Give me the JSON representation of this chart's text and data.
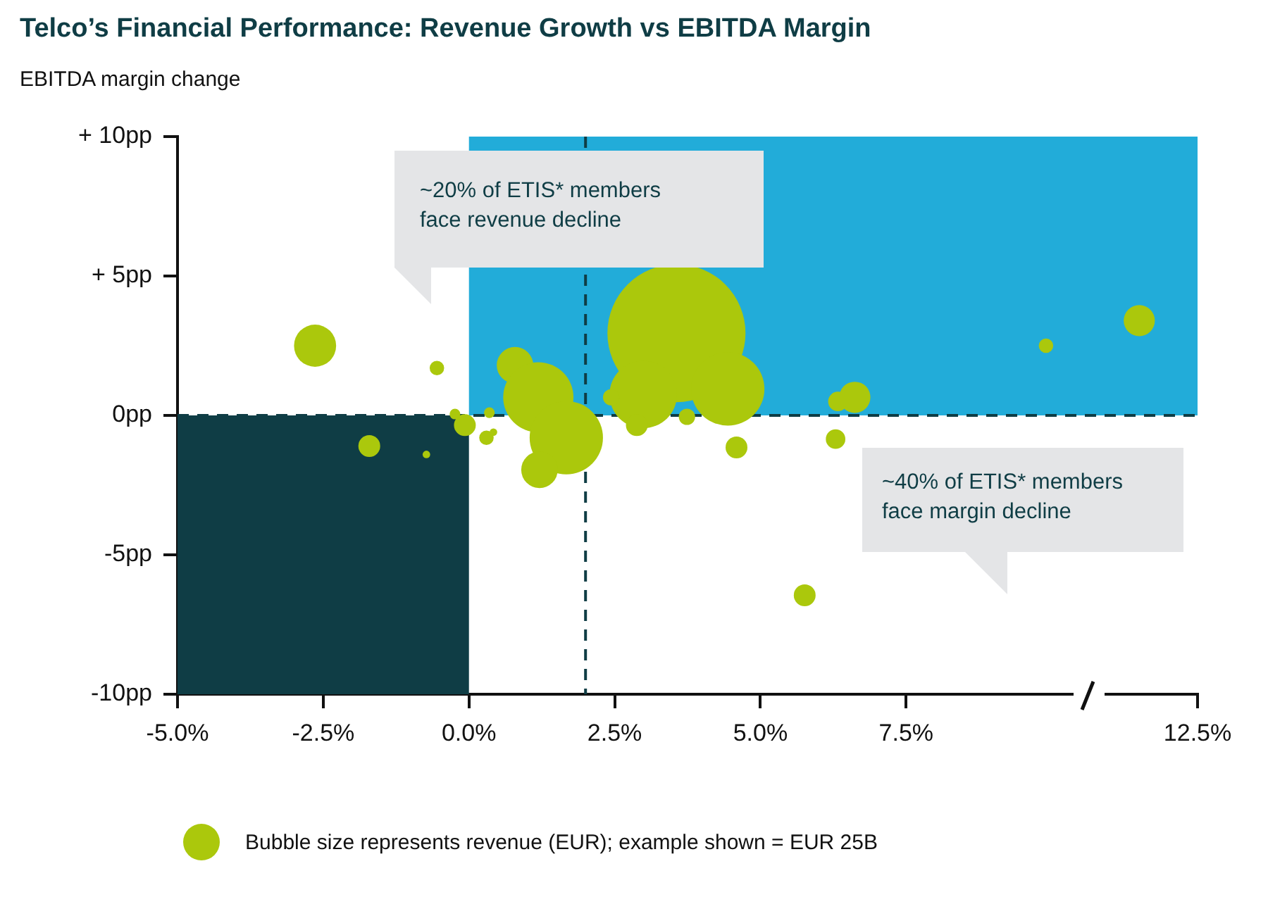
{
  "chart_data": {
    "type": "bubble",
    "title": "Telco’s Financial Performance: Revenue Growth vs EBITDA Margin",
    "ylabel": "EBITDA margin change",
    "annotations": [
      "~20% of ETIS* members face revenue decline",
      "~40% of ETIS* members face margin decline",
      "Bubble size represents revenue (EUR); example shown = EUR 25B"
    ],
    "x": [
      -2.64,
      -0.55,
      -1.71,
      -0.73,
      -0.07,
      -0.24,
      0.35,
      0.3,
      0.42,
      0.79,
      1.19,
      1.67,
      1.21,
      3.56,
      2.99,
      2.88,
      2.44,
      3.74,
      4.44,
      4.59,
      6.33,
      6.62,
      6.29,
      5.76,
      9.9,
      11.5
    ],
    "series": [
      {
        "color": "#abc80c",
        "values": [
          2.5,
          1.7,
          -1.1,
          -1.4,
          -0.35,
          0.05,
          0.1,
          -0.8,
          -0.6,
          1.8,
          0.65,
          -0.8,
          -1.95,
          2.95,
          0.75,
          -0.35,
          0.65,
          -0.05,
          0.95,
          -1.15,
          0.5,
          0.65,
          -0.85,
          -6.45,
          2.5,
          3.4
        ],
        "sizes": [
          0.093,
          0.011,
          0.025,
          0.003,
          0.025,
          0.006,
          0.006,
          0.011,
          0.003,
          0.07,
          0.259,
          0.282,
          0.07,
          1,
          0.239,
          0.025,
          0.014,
          0.014,
          0.282,
          0.025,
          0.02,
          0.051,
          0.02,
          0.025,
          0.011,
          0.051
        ]
      }
    ],
    "xlim": [
      -5,
      12.5
    ],
    "xticks": [
      {
        "value": -5,
        "label": "-5.0%"
      },
      {
        "value": -2.5,
        "label": "-2.5%"
      },
      {
        "value": 0,
        "label": "0.0%"
      },
      {
        "value": 2.5,
        "label": "2.5%"
      },
      {
        "value": 5,
        "label": "5.0%"
      },
      {
        "value": 7.5,
        "label": "7.5%"
      },
      {
        "value": 12.5,
        "label": "12.5%"
      }
    ],
    "ylim": [
      -10,
      10
    ],
    "yticks": [
      {
        "value": -10,
        "label": "-10pp"
      },
      {
        "value": -5,
        "label": "-5pp"
      },
      {
        "value": 0,
        "label": "0pp"
      },
      {
        "value": 5,
        "label": "+ 5pp"
      },
      {
        "value": 10,
        "label": "+ 10pp"
      }
    ],
    "ref_lines": [
      {
        "axis": "x",
        "value": 2,
        "color": "#0f3d45",
        "line_style": "dashed"
      },
      {
        "axis": "y",
        "value": 0,
        "color": "#0f3d45",
        "line_style": "dashed"
      }
    ],
    "bands": [
      {
        "axis": "x",
        "from": -5,
        "to": 0,
        "color": "#0f3d45"
      },
      {
        "axis": "x",
        "from": 0,
        "to": 12.5,
        "color": "#22acd9"
      }
    ],
    "grid": false,
    "legend": false
  }
}
